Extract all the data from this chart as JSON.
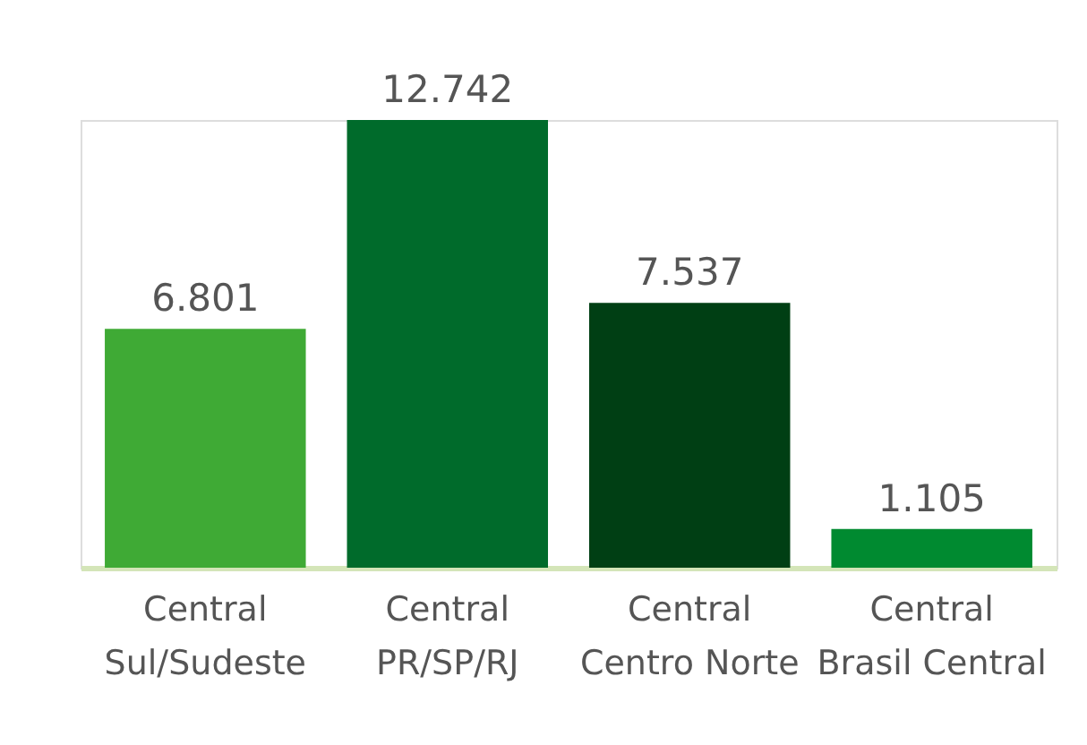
{
  "chart_data": {
    "type": "bar",
    "categories": [
      "Central\nSul/Sudeste",
      "Central\nPR/SP/RJ",
      "Central\nCentro Norte",
      "Central\nBrasil Central"
    ],
    "values": [
      6.801,
      12.742,
      7.537,
      1.105
    ],
    "colors": [
      "#3faa35",
      "#006b2b",
      "#003f14",
      "#008a30"
    ],
    "data_labels": true,
    "grid": false
  }
}
